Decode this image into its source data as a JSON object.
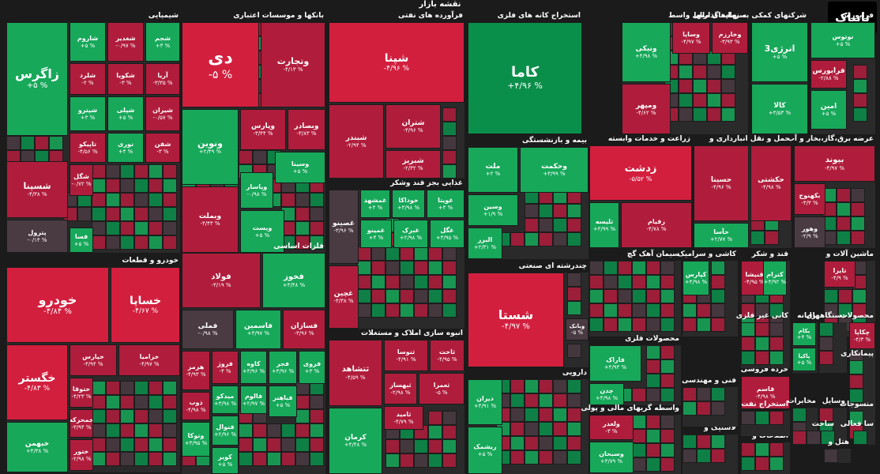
{
  "title": "نقشه بازار",
  "logo_text": "تابناک",
  "colors": {
    "up_strong": "#0a8f4a",
    "up": "#17a85a",
    "down_strong": "#d31f3e",
    "down": "#b01d3c",
    "neutral": "#4a3a42"
  },
  "chart_data": {
    "type": "treemap",
    "title": "نقشه بازار",
    "sectors": [
      {
        "name": "شیمیایی",
        "tiles": [
          {
            "name": "زاگرس",
            "pct": "+۵ %",
            "c": "up"
          },
          {
            "name": "شاروم",
            "pct": "+۵ %",
            "c": "up"
          },
          {
            "name": "شغدیر",
            "pct": "-۰/۹۷ %",
            "c": "down"
          },
          {
            "name": "شجم",
            "pct": "+۳ %",
            "c": "up"
          },
          {
            "name": "شلرد",
            "pct": "-۲ %",
            "c": "down"
          },
          {
            "name": "شکویا",
            "pct": "-۳ %",
            "c": "down"
          },
          {
            "name": "آریا",
            "pct": "-۳/۳۵ %",
            "c": "down"
          },
          {
            "name": "شپترو",
            "pct": "+۳ %",
            "c": "up"
          },
          {
            "name": "شپلی",
            "pct": "+۵ %",
            "c": "up"
          },
          {
            "name": "شیران",
            "pct": "-۰/۵۷ %",
            "c": "down"
          },
          {
            "name": "تاپیکو",
            "pct": "-۴/۵۶ %",
            "c": "down"
          },
          {
            "name": "نوری",
            "pct": "+۴ %",
            "c": "up"
          },
          {
            "name": "شفن",
            "pct": "-۳ %",
            "c": "down"
          },
          {
            "name": "شسپنا",
            "pct": "-۴/۳۸ %",
            "c": "down"
          },
          {
            "name": "شگل",
            "pct": "-۰/۷۲ %",
            "c": "down"
          },
          {
            "name": "پترول",
            "pct": "-۰/۱۴ %",
            "c": "neutral"
          },
          {
            "name": "فسا",
            "pct": "+۵ %",
            "c": "up"
          }
        ]
      },
      {
        "name": "بانکها و موسسات اعتباری",
        "tiles": [
          {
            "name": "دی",
            "pct": "-۵ %",
            "c": "down_strong"
          },
          {
            "name": "وتجارت",
            "pct": "-۴/۱۳ %",
            "c": "down"
          },
          {
            "name": "ونوین",
            "pct": "+۲/۴۹ %",
            "c": "up"
          },
          {
            "name": "وپارس",
            "pct": "-۳/۴۴ %",
            "c": "down"
          },
          {
            "name": "وبصادر",
            "pct": "-۳/۸۳ %",
            "c": "down"
          },
          {
            "name": "وسینا",
            "pct": "+۵ %",
            "c": "up"
          },
          {
            "name": "وپاسار",
            "pct": "-۰/۹۸ %",
            "c": "up"
          },
          {
            "name": "وبملت",
            "pct": "-۴/۴۳ %",
            "c": "down"
          },
          {
            "name": "ویست",
            "pct": "+۵ %",
            "c": "up"
          }
        ]
      },
      {
        "name": "فرآورده های نفتی",
        "tiles": [
          {
            "name": "شپنا",
            "pct": "-۴/۹۶ %",
            "c": "down_strong"
          },
          {
            "name": "شتران",
            "pct": "-۳/۹۶ %",
            "c": "down"
          },
          {
            "name": "شبندر",
            "pct": "-۲/۹۴ %",
            "c": "down"
          },
          {
            "name": "شبریز",
            "pct": "-۲/۳۲ %",
            "c": "down"
          }
        ]
      },
      {
        "name": "استخراج کانه های فلزی",
        "tiles": [
          {
            "name": "کاما",
            "pct": "+۴/۹۶ %",
            "c": "up_strong"
          }
        ]
      },
      {
        "name": "سرمایه گذاریها",
        "tiles": [
          {
            "name": "ونیکی",
            "pct": "+۴/۹۸ %",
            "c": "up"
          },
          {
            "name": "وساپا",
            "pct": "-۴/۹۷ %",
            "c": "down"
          },
          {
            "name": "وخارزم",
            "pct": "-۳/۹۳ %",
            "c": "down"
          },
          {
            "name": "ومپهر",
            "pct": "-۴/۶۲ %",
            "c": "down"
          }
        ]
      },
      {
        "name": "شرکتهای کمکی به نهادهای مالی واسط",
        "tiles": [
          {
            "name": "انرژی3",
            "pct": "+۵ %",
            "c": "up"
          },
          {
            "name": "کالا",
            "pct": "+۳/۵۳ %",
            "c": "up"
          }
        ]
      },
      {
        "name": "فرابورس",
        "tiles": [
          {
            "name": "نوتوس",
            "pct": "+۵ %",
            "c": "up"
          },
          {
            "name": "فرابورس",
            "pct": "-۲/۸۸ %",
            "c": "down"
          },
          {
            "name": "امین",
            "pct": "+۵ %",
            "c": "up"
          },
          {
            "name": "توبین",
            "pct": "+۵ %",
            "c": "up"
          }
        ]
      },
      {
        "name": "بیمه و بازنشستگی",
        "tiles": [
          {
            "name": "ملت",
            "pct": "+۲ %",
            "c": "up"
          },
          {
            "name": "وحکمت",
            "pct": "+۳/۹۹ %",
            "c": "up"
          },
          {
            "name": "وسین",
            "pct": "+۱/۹ %",
            "c": "up"
          },
          {
            "name": "البرز",
            "pct": "+۲/۳۱ %",
            "c": "up"
          }
        ]
      },
      {
        "name": "غذایی بجز قند وشکر",
        "tiles": [
          {
            "name": "غمشهد",
            "pct": "+۴ %",
            "c": "up"
          },
          {
            "name": "خوداکا",
            "pct": "+۳/۹۸ %",
            "c": "up"
          },
          {
            "name": "غویتا",
            "pct": "+۴ %",
            "c": "up"
          },
          {
            "name": "غصینو",
            "pct": "-۳/۹۶ %",
            "c": "neutral"
          },
          {
            "name": "غمینو",
            "pct": "+۴ %",
            "c": "up"
          },
          {
            "name": "غبرک",
            "pct": "+۲/۹۸ %",
            "c": "up"
          },
          {
            "name": "غگل",
            "pct": "+۳/۹۵ %",
            "c": "up"
          },
          {
            "name": "غچین",
            "pct": "-۴/۳۸ %",
            "c": "down"
          }
        ]
      },
      {
        "name": "زراعت و خدمات وابسته",
        "tiles": [
          {
            "name": "زدشت",
            "pct": "-۵/۵۲ %",
            "c": "down_strong"
          },
          {
            "name": "زقیام",
            "pct": "-۴/۷۸ %",
            "c": "down"
          },
          {
            "name": "تلیسه",
            "pct": "+۳/۹۹ %",
            "c": "up"
          }
        ]
      },
      {
        "name": "حمل و نقل انبارداری و",
        "tiles": [
          {
            "name": "حسینا",
            "pct": "-۴/۹۶ %",
            "c": "down"
          },
          {
            "name": "حکشتی",
            "pct": "-۴/۹۸ %",
            "c": "down"
          },
          {
            "name": "حآسا",
            "pct": "+۲/۷۷ %",
            "c": "up"
          }
        ]
      },
      {
        "name": "عرضه برق،گاز،بخار و آب",
        "tiles": [
          {
            "name": "بیوند",
            "pct": "-۴/۹۷ %",
            "c": "down"
          },
          {
            "name": "بکهنوج",
            "pct": "-۳/۳ %",
            "c": "down"
          },
          {
            "name": "وهور",
            "pct": "-۲/۹ %",
            "c": "neutral"
          }
        ]
      },
      {
        "name": "خودرو و قطعات",
        "tiles": [
          {
            "name": "خودرو",
            "pct": "-۴/۸۴ %",
            "c": "down_strong"
          },
          {
            "name": "خساپا",
            "pct": "-۴/۶۷ %",
            "c": "down_strong"
          },
          {
            "name": "خگستر",
            "pct": "-۴/۸۳ %",
            "c": "down_strong"
          },
          {
            "name": "خپارس",
            "pct": "-۳/۹۴ %",
            "c": "down"
          },
          {
            "name": "خزامیا",
            "pct": "-۴/۹۷ %",
            "c": "down"
          },
          {
            "name": "ختوقا",
            "pct": "-۴/۲۳ %",
            "c": "down"
          },
          {
            "name": "خمحرکه",
            "pct": "-۳/۹۴ %",
            "c": "down"
          },
          {
            "name": "خبهمن",
            "pct": "+۴/۳۸ %",
            "c": "up"
          },
          {
            "name": "ختور",
            "pct": "-۲/۹۸ %",
            "c": "down"
          }
        ]
      },
      {
        "name": "فلزات اساسی",
        "tiles": [
          {
            "name": "فولاد",
            "pct": "-۳/۱۹ %",
            "c": "down"
          },
          {
            "name": "فخوز",
            "pct": "+۳/۴۸ %",
            "c": "up"
          },
          {
            "name": "فملی",
            "pct": "-۰/۹۸ %",
            "c": "neutral"
          },
          {
            "name": "فاسمین",
            "pct": "+۳/۹۷ %",
            "c": "up"
          },
          {
            "name": "فسازان",
            "pct": "-۳/۹۶ %",
            "c": "down"
          },
          {
            "name": "هرمز",
            "pct": "-۴/۹۳ %",
            "c": "down"
          },
          {
            "name": "فروژ",
            "pct": "-۴ %",
            "c": "down"
          },
          {
            "name": "کاوه",
            "pct": "+۳/۹۶ %",
            "c": "up"
          },
          {
            "name": "فجر",
            "pct": "+۳/۹۶ %",
            "c": "up"
          },
          {
            "name": "فروی",
            "pct": "+۳ %",
            "c": "up"
          },
          {
            "name": "ذوب",
            "pct": "-۴/۹۸ %",
            "c": "down"
          },
          {
            "name": "میدکو",
            "pct": "+۳/۹۸ %",
            "c": "up"
          },
          {
            "name": "فالوم",
            "pct": "+۲/۹۷ %",
            "c": "up"
          },
          {
            "name": "فباهنر",
            "pct": "+۵ %",
            "c": "up"
          },
          {
            "name": "فنوال",
            "pct": "+۲/۹۶ %",
            "c": "up"
          },
          {
            "name": "وتوکا",
            "pct": "+۳/۹۵ %",
            "c": "up"
          },
          {
            "name": "کویر",
            "pct": "+۵ %",
            "c": "up"
          }
        ]
      },
      {
        "name": "انبوه سازی املاک و مستغلات",
        "tiles": [
          {
            "name": "ثتشاهد",
            "pct": "-۴/۵۹ %",
            "c": "down"
          },
          {
            "name": "ثنوسا",
            "pct": "-۴/۹۱ %",
            "c": "down"
          },
          {
            "name": "ثاخت",
            "pct": "-۴/۹۵ %",
            "c": "down"
          },
          {
            "name": "ثبهساز",
            "pct": "-۲/۹۸ %",
            "c": "down"
          },
          {
            "name": "ثعمرا",
            "pct": "-۵ %",
            "c": "down"
          },
          {
            "name": "ثامید",
            "pct": "-۴/۷۹ %",
            "c": "down"
          },
          {
            "name": "کرمان",
            "pct": "+۴/۴۸ %",
            "c": "up"
          }
        ]
      },
      {
        "name": "چندرشته ای صنعتی",
        "tiles": [
          {
            "name": "شستا",
            "pct": "-۴/۹۷ %",
            "c": "down_strong"
          },
          {
            "name": "وبانک",
            "pct": "-۵ %",
            "c": "neutral"
          }
        ]
      },
      {
        "name": "دارویی",
        "tiles": [
          {
            "name": "دیران",
            "pct": "+۳/۹۱ %",
            "c": "up"
          },
          {
            "name": "ریشمک",
            "pct": "+۵ %",
            "c": "up"
          }
        ]
      },
      {
        "name": "سیمان آهک گچ",
        "tiles": []
      },
      {
        "name": "کاشی و سرامیک",
        "tiles": [
          {
            "name": "کپارس",
            "pct": "+۴/۹۸ %",
            "c": "up"
          }
        ]
      },
      {
        "name": "قند و شکر",
        "tiles": [
          {
            "name": "قنیشا",
            "pct": "-۴/۹۵ %",
            "c": "down"
          },
          {
            "name": "کترام",
            "pct": "+۳/۹۲ %",
            "c": "up"
          }
        ]
      },
      {
        "name": "ماشین آلات و",
        "tiles": [
          {
            "name": "تایرا",
            "pct": "-۴/۹ %",
            "c": "down"
          }
        ]
      },
      {
        "name": "محصولات فلزی",
        "tiles": [
          {
            "name": "فاراک",
            "pct": "+۴/۹۳ %",
            "c": "up"
          },
          {
            "name": "چدن",
            "pct": "+۴/۹۸ %",
            "c": "up"
          }
        ]
      },
      {
        "name": "رایانه",
        "tiles": [
          {
            "name": "بکام",
            "pct": "+۴ %",
            "c": "up"
          },
          {
            "name": "پاکیا",
            "pct": "+۵ %",
            "c": "up"
          }
        ]
      },
      {
        "name": "دستگاههای",
        "tiles": []
      },
      {
        "name": "محصولات",
        "tiles": [
          {
            "name": "چکاپا",
            "pct": "-۴/۳ %",
            "c": "down"
          }
        ]
      },
      {
        "name": "پیمانکاری",
        "tiles": []
      },
      {
        "name": "خرده فروشی",
        "tiles": [
          {
            "name": "قاسم",
            "pct": "-۴/۹۸ %",
            "c": "down"
          }
        ]
      },
      {
        "name": "واسطه گریهای مالی و پولی",
        "tiles": [
          {
            "name": "ولغدر",
            "pct": "-۳ %",
            "c": "down"
          },
          {
            "name": "وسبحان",
            "pct": "+۳/۷۹ %",
            "c": "up"
          }
        ]
      },
      {
        "name": "لاستیک و",
        "tiles": []
      },
      {
        "name": "اطلاعات و",
        "tiles": []
      },
      {
        "name": "کانی غیر فلزی",
        "tiles": []
      },
      {
        "name": "فنی و مهندسی",
        "tiles": []
      },
      {
        "name": "استخراج نفت",
        "tiles": []
      },
      {
        "name": "مخابرات",
        "tiles": []
      },
      {
        "name": "وسایل",
        "tiles": []
      },
      {
        "name": "منسوجات",
        "tiles": []
      },
      {
        "name": "ساخت",
        "tiles": []
      },
      {
        "name": "هتل و",
        "tiles": []
      },
      {
        "name": "سا فعالی",
        "tiles": []
      }
    ]
  }
}
